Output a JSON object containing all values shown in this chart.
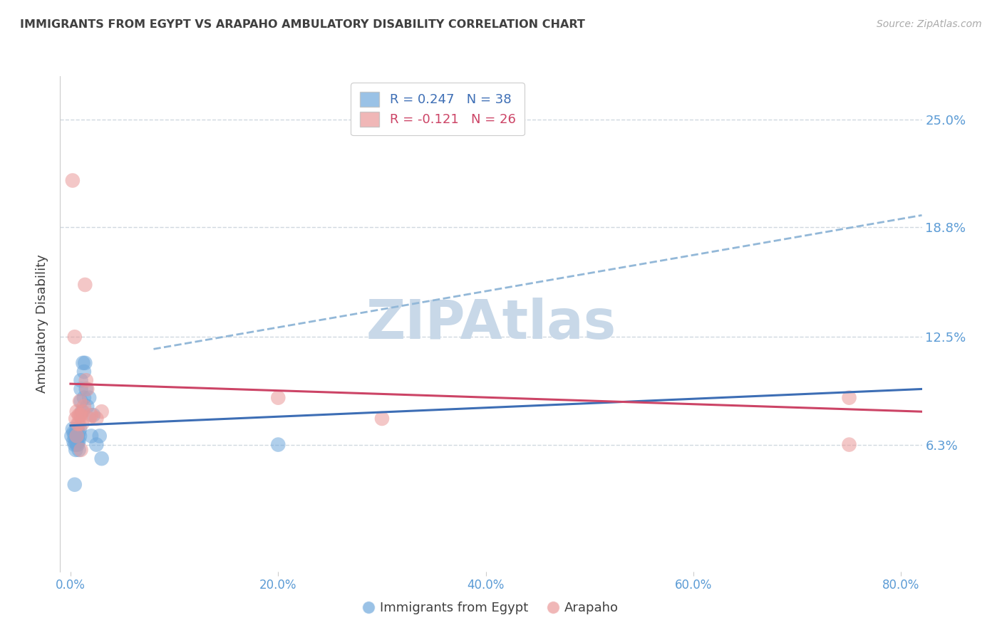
{
  "title": "IMMIGRANTS FROM EGYPT VS ARAPAHO AMBULATORY DISABILITY CORRELATION CHART",
  "source": "Source: ZipAtlas.com",
  "ylabel": "Ambulatory Disability",
  "xlabel_ticks": [
    "0.0%",
    "20.0%",
    "40.0%",
    "60.0%",
    "80.0%"
  ],
  "xlabel_values": [
    0.0,
    0.2,
    0.4,
    0.6,
    0.8
  ],
  "ytick_labels": [
    "6.3%",
    "12.5%",
    "18.8%",
    "25.0%"
  ],
  "ytick_values": [
    0.063,
    0.125,
    0.188,
    0.25
  ],
  "xlim": [
    -0.01,
    0.82
  ],
  "ylim": [
    -0.01,
    0.275
  ],
  "blue_R": 0.247,
  "blue_N": 38,
  "pink_R": -0.121,
  "pink_N": 26,
  "legend_blue_label": "Immigrants from Egypt",
  "legend_pink_label": "Arapaho",
  "blue_color": "#6fa8dc",
  "pink_color": "#ea9999",
  "blue_line_color": "#3d6eb5",
  "pink_line_color": "#cc4466",
  "dashed_line_color": "#93b8d8",
  "watermark_color": "#c8d8e8",
  "title_color": "#404040",
  "axis_label_color": "#404040",
  "tick_label_color": "#5b9bd5",
  "grid_color": "#d0d8e0",
  "blue_x": [
    0.001,
    0.002,
    0.003,
    0.003,
    0.004,
    0.004,
    0.005,
    0.005,
    0.005,
    0.006,
    0.006,
    0.006,
    0.007,
    0.007,
    0.007,
    0.008,
    0.008,
    0.008,
    0.009,
    0.009,
    0.01,
    0.01,
    0.011,
    0.012,
    0.013,
    0.013,
    0.014,
    0.015,
    0.016,
    0.018,
    0.02,
    0.022,
    0.025,
    0.028,
    0.03,
    0.2,
    0.004,
    0.01
  ],
  "blue_y": [
    0.068,
    0.072,
    0.065,
    0.07,
    0.063,
    0.068,
    0.06,
    0.065,
    0.07,
    0.063,
    0.068,
    0.072,
    0.065,
    0.063,
    0.068,
    0.06,
    0.065,
    0.07,
    0.068,
    0.072,
    0.095,
    0.088,
    0.082,
    0.11,
    0.105,
    0.09,
    0.11,
    0.095,
    0.085,
    0.09,
    0.068,
    0.08,
    0.063,
    0.068,
    0.055,
    0.063,
    0.04,
    0.1
  ],
  "pink_x": [
    0.002,
    0.004,
    0.005,
    0.006,
    0.007,
    0.008,
    0.009,
    0.01,
    0.011,
    0.012,
    0.013,
    0.014,
    0.015,
    0.016,
    0.018,
    0.02,
    0.025,
    0.03,
    0.2,
    0.3,
    0.75,
    0.75,
    0.006,
    0.008,
    0.009,
    0.01
  ],
  "pink_y": [
    0.215,
    0.125,
    0.078,
    0.082,
    0.075,
    0.08,
    0.088,
    0.08,
    0.075,
    0.082,
    0.085,
    0.155,
    0.1,
    0.095,
    0.078,
    0.08,
    0.078,
    0.082,
    0.09,
    0.078,
    0.09,
    0.063,
    0.068,
    0.075,
    0.08,
    0.06
  ],
  "blue_trend_x": [
    0.0,
    0.82
  ],
  "blue_trend_y": [
    0.074,
    0.095
  ],
  "pink_trend_x": [
    0.0,
    0.82
  ],
  "pink_trend_y": [
    0.098,
    0.082
  ],
  "dashed_trend_x": [
    0.08,
    0.82
  ],
  "dashed_trend_y": [
    0.118,
    0.195
  ]
}
